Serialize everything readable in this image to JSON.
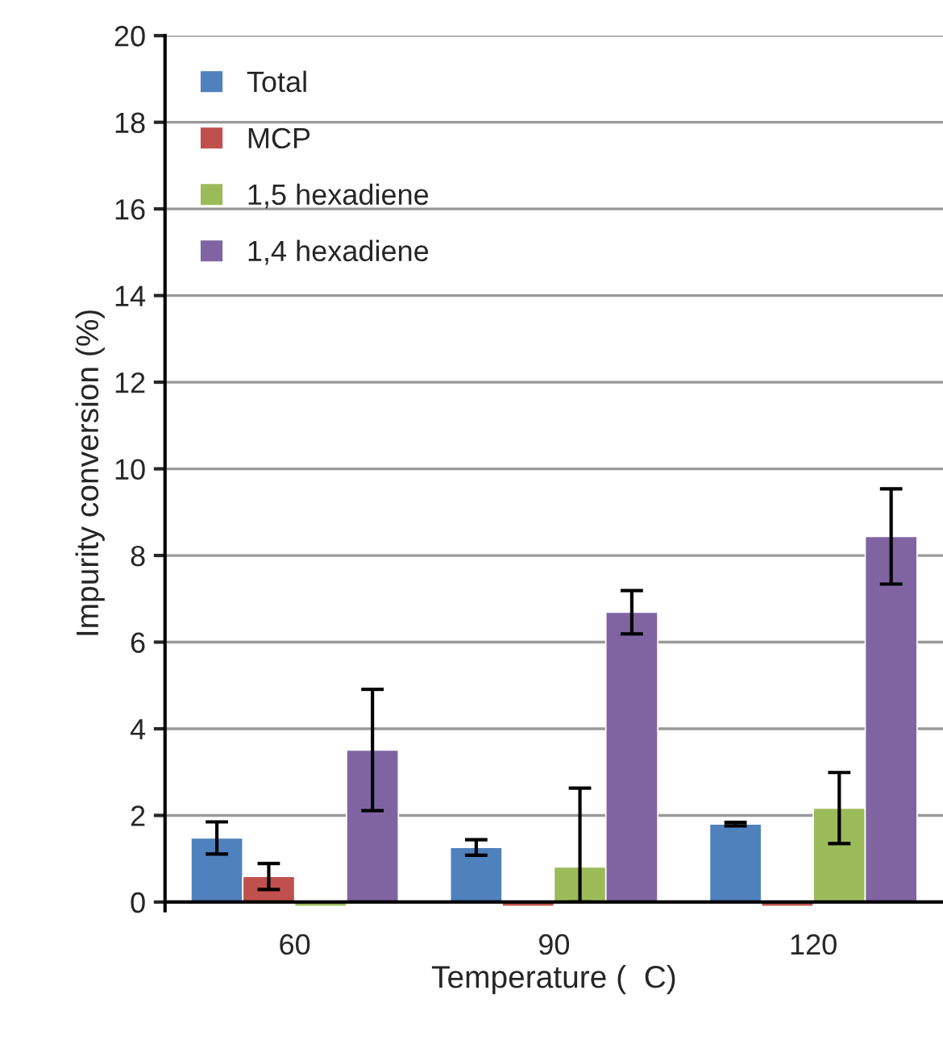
{
  "chart_data": {
    "type": "bar",
    "xlabel": "Temperature (  C)",
    "ylabel": "Impurity conversion (%)",
    "categories": [
      "60",
      "90",
      "120"
    ],
    "series": [
      {
        "name": "Total",
        "color": "#4f81bd",
        "values": [
          1.48,
          1.26,
          1.8
        ],
        "errors": [
          0.37,
          0.18,
          0.04
        ]
      },
      {
        "name": "MCP",
        "color": "#c0504d",
        "values": [
          0.59,
          -0.1,
          -0.1
        ],
        "errors": [
          0.3,
          null,
          null
        ]
      },
      {
        "name": "1,5 hexadiene",
        "color": "#9bbb59",
        "values": [
          -0.1,
          0.81,
          2.17
        ],
        "errors": [
          null,
          [
            0,
            2.63
          ],
          0.82
        ]
      },
      {
        "name": "1,4 hexadiene",
        "color": "#8064a2",
        "values": [
          3.51,
          6.69,
          8.44
        ],
        "errors": [
          1.4,
          0.5,
          1.1
        ]
      }
    ],
    "ylim": [
      -0.2,
      20
    ],
    "yticks": [
      0,
      2,
      4,
      6,
      8,
      10,
      12,
      14,
      16,
      18,
      20
    ],
    "grid": "y",
    "legend": "top left"
  }
}
